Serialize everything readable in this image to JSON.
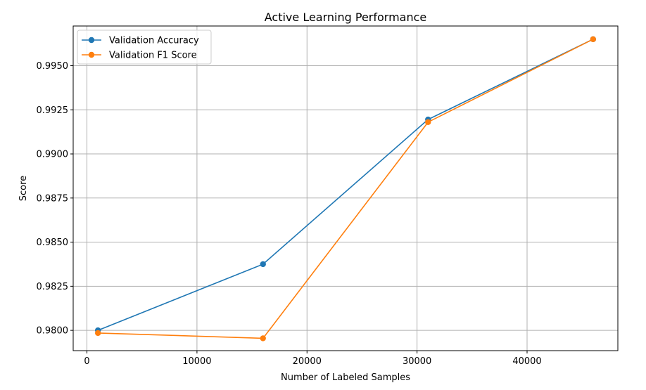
{
  "chart_data": {
    "type": "line",
    "title": "Active Learning Performance",
    "xlabel": "Number of Labeled Samples",
    "ylabel": "Score",
    "x": [
      1000,
      16000,
      31000,
      46000
    ],
    "series": [
      {
        "name": "Validation Accuracy",
        "values": [
          0.98,
          0.98375,
          0.99195,
          0.9965
        ],
        "color": "#1f77b4"
      },
      {
        "name": "Validation F1 Score",
        "values": [
          0.97985,
          0.97955,
          0.9918,
          0.9965
        ],
        "color": "#ff7f0e"
      }
    ],
    "xlim": [
      -1250,
      48250
    ],
    "ylim": [
      0.97885,
      0.99725
    ],
    "xticks": [
      0,
      10000,
      20000,
      30000,
      40000
    ],
    "xtick_labels": [
      "0",
      "10000",
      "20000",
      "30000",
      "40000"
    ],
    "yticks": [
      0.98,
      0.9825,
      0.985,
      0.9875,
      0.99,
      0.9925,
      0.995
    ],
    "ytick_labels": [
      "0.9800",
      "0.9825",
      "0.9850",
      "0.9875",
      "0.9900",
      "0.9925",
      "0.9950"
    ],
    "grid": true,
    "legend_position": "upper left",
    "markers": "circle"
  }
}
